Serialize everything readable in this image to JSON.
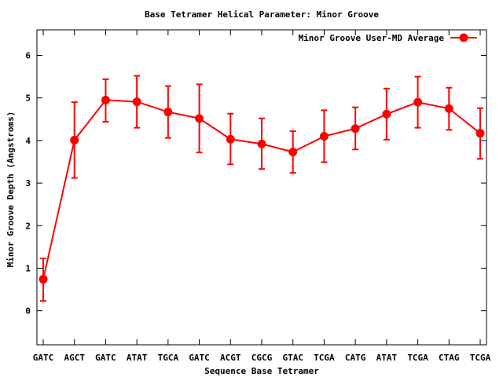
{
  "chart_data": {
    "type": "line",
    "title": "Base Tetramer Helical Parameter: Minor Groove",
    "xlabel": "Sequence Base Tetramer",
    "ylabel": "Minor Groove Depth (Angstroms)",
    "categories": [
      "GATC",
      "AGCT",
      "GATC",
      "ATAT",
      "TGCA",
      "GATC",
      "ACGT",
      "CGCG",
      "GTAC",
      "TCGA",
      "CATG",
      "ATAT",
      "TCGA",
      "CTAG",
      "TCGA"
    ],
    "ylim": [
      -0.8,
      6.6
    ],
    "yticks": [
      0,
      1,
      2,
      3,
      4,
      5,
      6
    ],
    "grid": false,
    "legend_position": "top-right",
    "series": [
      {
        "name": "Minor Groove User-MD Average",
        "color": "#ff0000",
        "values": [
          0.74,
          4.01,
          4.95,
          4.91,
          4.67,
          4.52,
          4.03,
          3.92,
          3.73,
          4.1,
          4.28,
          4.62,
          4.9,
          4.75,
          4.17
        ],
        "err_low": [
          0.23,
          3.12,
          4.44,
          4.3,
          4.06,
          3.72,
          3.44,
          3.33,
          3.24,
          3.49,
          3.79,
          4.02,
          4.3,
          4.25,
          3.57
        ],
        "err_high": [
          1.23,
          4.9,
          5.44,
          5.52,
          5.28,
          5.32,
          4.63,
          4.52,
          4.22,
          4.71,
          4.78,
          5.22,
          5.5,
          5.24,
          4.76
        ]
      }
    ]
  }
}
